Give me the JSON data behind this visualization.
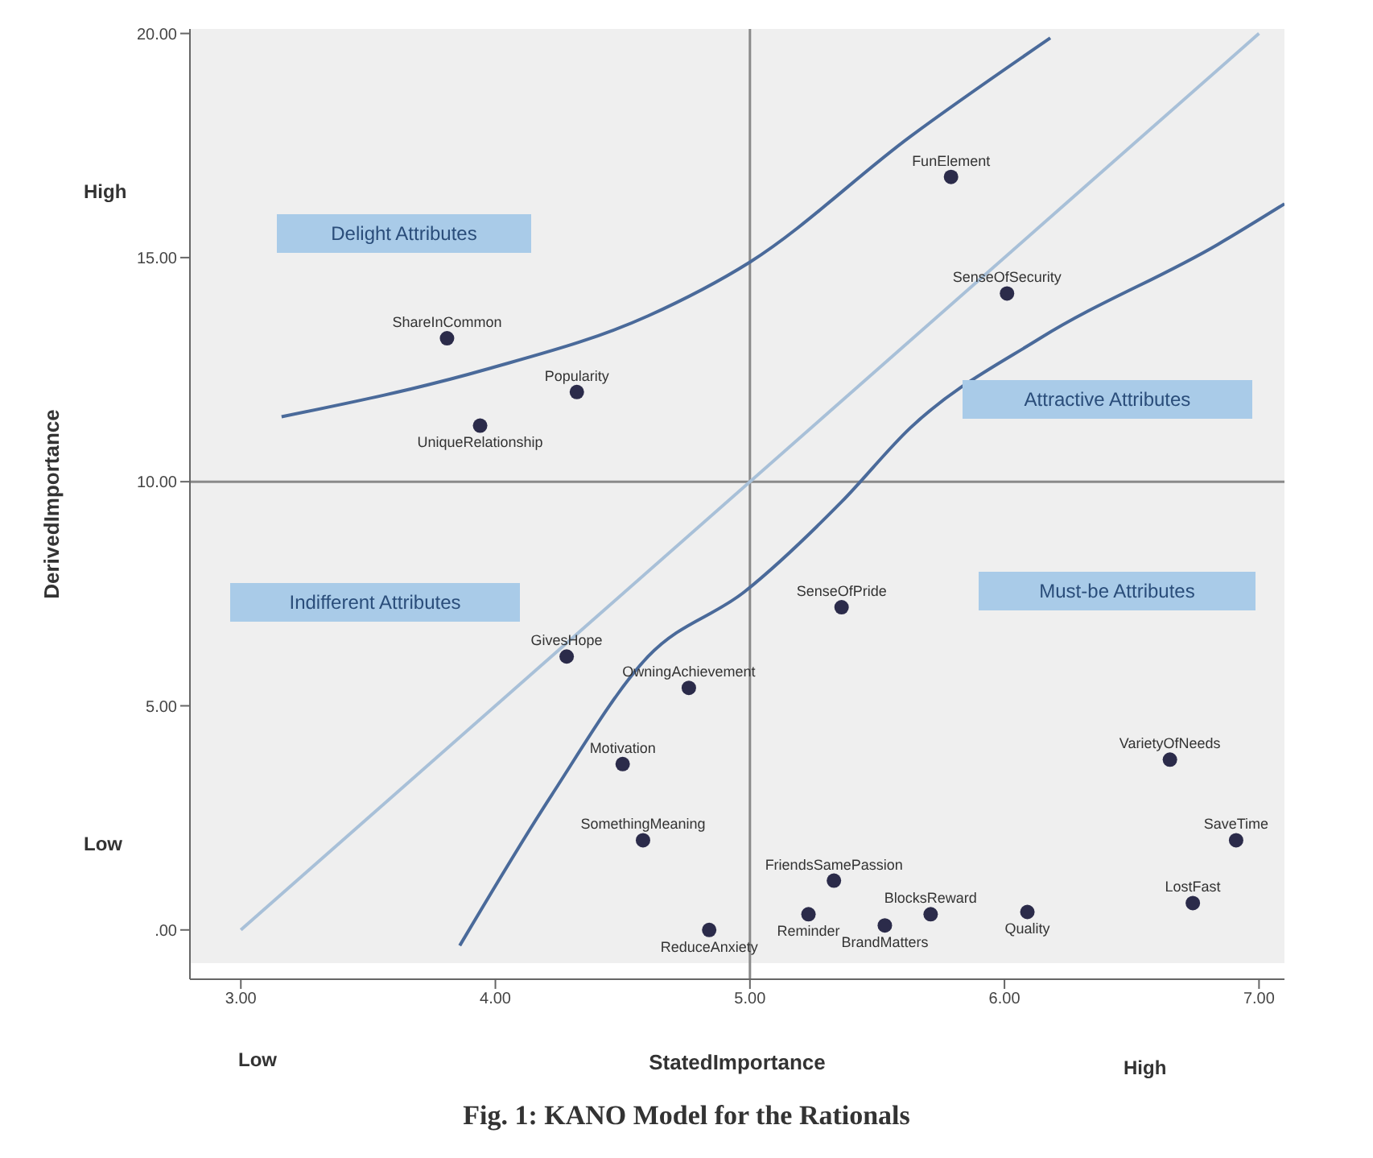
{
  "chart_data": {
    "type": "scatter",
    "xlabel": "StatedImportance",
    "ylabel": "DerivedImportance",
    "xlim": [
      2.8,
      7.1
    ],
    "ylim": [
      -1.1,
      20.1
    ],
    "xticks": [
      {
        "value": 3,
        "label": "3.00"
      },
      {
        "value": 4,
        "label": "4.00"
      },
      {
        "value": 5,
        "label": "5.00"
      },
      {
        "value": 6,
        "label": "6.00"
      },
      {
        "value": 7,
        "label": "7.00"
      }
    ],
    "yticks": [
      {
        "value": 0,
        "label": ".00"
      },
      {
        "value": 5,
        "label": "5.00"
      },
      {
        "value": 10,
        "label": "10.00"
      },
      {
        "value": 15,
        "label": "15.00"
      },
      {
        "value": 20,
        "label": "20.00"
      }
    ],
    "series": [
      {
        "marker": "circle",
        "color": "#2b2b4a",
        "x": [
          3.81,
          4.32,
          3.94,
          5.79,
          6.01,
          5.36,
          4.28,
          4.76,
          4.5,
          4.58,
          4.84,
          5.33,
          5.23,
          5.53,
          5.71,
          6.09,
          6.65,
          6.91,
          6.74
        ],
        "values": [
          13.2,
          12.0,
          11.25,
          16.8,
          14.2,
          7.2,
          6.1,
          5.4,
          3.7,
          2.0,
          0.0,
          1.1,
          0.35,
          0.1,
          0.35,
          0.4,
          3.8,
          2.0,
          0.6
        ]
      },
      {
        "type": "line",
        "color": "#a8c0d8",
        "x": [
          3,
          7
        ],
        "values": [
          0,
          20
        ]
      },
      {
        "type": "line",
        "color": "#4a6a9a",
        "x": [
          3.16,
          3.96,
          4.6,
          5.0,
          5.63,
          6.18
        ],
        "values": [
          11.45,
          12.5,
          13.7,
          14.9,
          17.7,
          19.9
        ]
      },
      {
        "type": "line",
        "color": "#4a6a9a",
        "x": [
          3.86,
          4.22,
          4.6,
          4.98,
          5.36,
          5.63,
          6.14,
          6.84,
          7.1
        ],
        "values": [
          -0.35,
          3.0,
          6.1,
          7.55,
          9.55,
          11.2,
          13.2,
          15.3,
          16.2
        ]
      }
    ],
    "ref_lines": [
      {
        "axis": "x",
        "value": 5,
        "color": "#8a8a8a"
      },
      {
        "axis": "y",
        "value": 10,
        "color": "#8a8a8a"
      }
    ],
    "annotations": [
      "Delight Attributes",
      "Attractive Attributes",
      "Indifferent Attributes",
      "Must-be Attributes",
      "High",
      "Low",
      "Low",
      "High",
      "Fig. 1: KANO Model for the Rationals",
      {
        "text": "ShareInCommon",
        "x": 3.81,
        "y": 13.2
      },
      {
        "text": "Popularity",
        "x": 4.32,
        "y": 12.0
      },
      {
        "text": "UniqueRelationship",
        "x": 3.94,
        "y": 11.25
      },
      {
        "text": "FunElement",
        "x": 5.79,
        "y": 16.8
      },
      {
        "text": "SenseOfSecurity",
        "x": 6.01,
        "y": 14.2
      },
      {
        "text": "SenseOfPride",
        "x": 5.36,
        "y": 7.2
      },
      {
        "text": "GivesHope",
        "x": 4.28,
        "y": 6.1
      },
      {
        "text": "OwningAchievement",
        "x": 4.76,
        "y": 5.4
      },
      {
        "text": "Motivation",
        "x": 4.5,
        "y": 3.7
      },
      {
        "text": "SomethingMeaning",
        "x": 4.58,
        "y": 2.0
      },
      {
        "text": "ReduceAnxiety",
        "x": 4.84,
        "y": 0.0
      },
      {
        "text": "FriendsSamePassion",
        "x": 5.33,
        "y": 1.1
      },
      {
        "text": "Reminder",
        "x": 5.23,
        "y": 0.35
      },
      {
        "text": "BrandMatters",
        "x": 5.53,
        "y": 0.1
      },
      {
        "text": "BlocksReward",
        "x": 5.71,
        "y": 0.35
      },
      {
        "text": "Quality",
        "x": 6.09,
        "y": 0.4
      },
      {
        "text": "VarietyOfNeeds",
        "x": 6.65,
        "y": 3.8
      },
      {
        "text": "SaveTime",
        "x": 6.91,
        "y": 2.0
      },
      {
        "text": "LostFast",
        "x": 6.74,
        "y": 0.6
      }
    ]
  }
}
